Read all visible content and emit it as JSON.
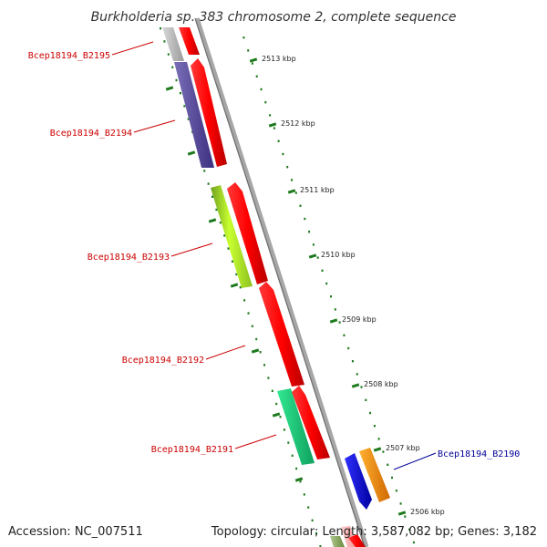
{
  "title": "Burkholderia sp. 383 chromosome 2, complete sequence",
  "accession": "Accession: NC_007511",
  "topology": "Topology: circular; Length: 3,587,082 bp; Genes: 3,182",
  "ticks": [
    {
      "label": "2513 kbp",
      "kbp": 2513
    },
    {
      "label": "2512 kbp",
      "kbp": 2512
    },
    {
      "label": "2511 kbp",
      "kbp": 2511
    },
    {
      "label": "2510 kbp",
      "kbp": 2510
    },
    {
      "label": "2509 kbp",
      "kbp": 2509
    },
    {
      "label": "2508 kbp",
      "kbp": 2508
    },
    {
      "label": "2507 kbp",
      "kbp": 2507
    },
    {
      "label": "2506 kbp",
      "kbp": 2506
    }
  ],
  "genes": [
    {
      "name": "Bcep18194_B2195",
      "color": "#cc0000"
    },
    {
      "name": "Bcep18194_B2194",
      "color": "#cc0000"
    },
    {
      "name": "Bcep18194_B2193",
      "color": "#cc0000"
    },
    {
      "name": "Bcep18194_B2192",
      "color": "#cc0000"
    },
    {
      "name": "Bcep18194_B2191",
      "color": "#cc0000"
    },
    {
      "name": "Bcep18194_B2190",
      "color": "#000099"
    }
  ],
  "colors": {
    "backbone": "#8a8a8a",
    "cds": "#ff0000",
    "tick": "#1e7a1e"
  }
}
